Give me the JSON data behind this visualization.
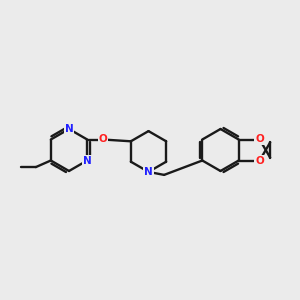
{
  "background_color": "#ebebeb",
  "bond_color": "#1a1a1a",
  "nitrogen_color": "#2020ff",
  "oxygen_color": "#ff2020",
  "line_width": 1.7,
  "figsize": [
    3.0,
    3.0
  ],
  "dpi": 100,
  "xlim": [
    0,
    10
  ],
  "ylim": [
    2,
    8
  ]
}
